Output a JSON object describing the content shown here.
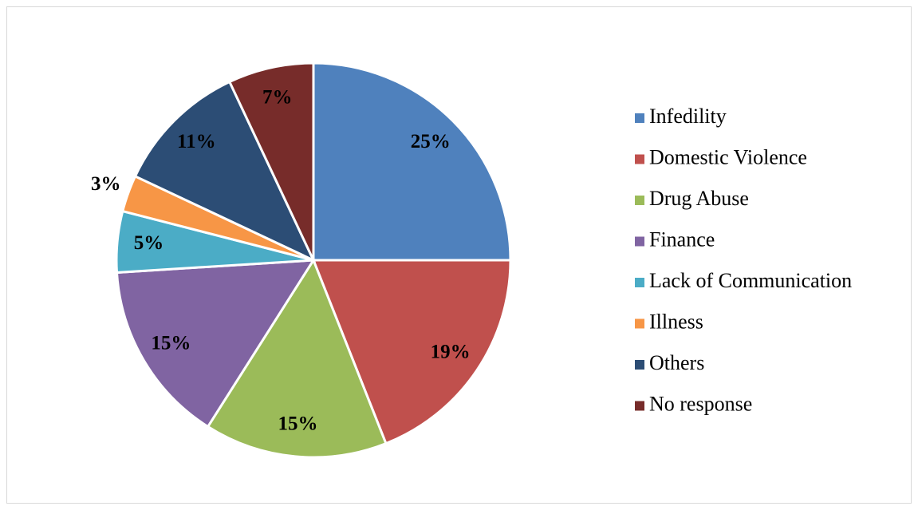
{
  "chart_data": {
    "type": "pie",
    "categories": [
      "Infedility",
      "Domestic Violence",
      "Drug Abuse",
      "Finance",
      "Lack of Communication",
      "Illness",
      "Others",
      "No response"
    ],
    "values": [
      25,
      19,
      15,
      15,
      5,
      3,
      11,
      7
    ],
    "value_labels": [
      "25%",
      "19%",
      "15%",
      "15%",
      "5%",
      "3%",
      "11%",
      "7%"
    ],
    "colors": [
      "#4f81bd",
      "#c0504d",
      "#9bbb59",
      "#8064a2",
      "#4bacc6",
      "#f79646",
      "#2c4d75",
      "#772c2a"
    ],
    "legend": "right"
  }
}
